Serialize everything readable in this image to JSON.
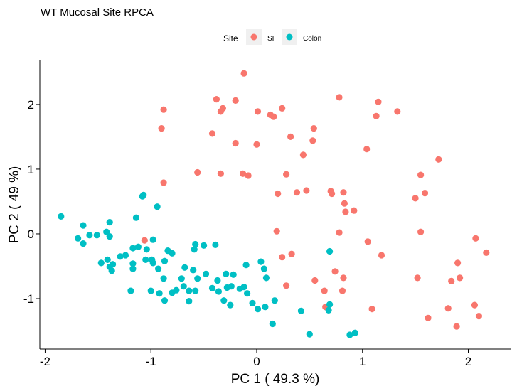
{
  "chart_data": {
    "type": "scatter",
    "title": "WT Mucosal Site RPCA",
    "xlabel": "PC 1 ( 49.3 %)",
    "ylabel": "PC 2 ( 49 %)",
    "xlim": [
      -2.05,
      2.4
    ],
    "ylim": [
      -1.78,
      2.68
    ],
    "x_ticks": [
      -2,
      -1,
      0,
      1,
      2
    ],
    "y_ticks": [
      -1,
      0,
      1,
      2
    ],
    "x_tick_labels": [
      "-2",
      "-1",
      "0",
      "1",
      "2"
    ],
    "y_tick_labels": [
      "-1",
      "0",
      "1",
      "2"
    ],
    "grid": false,
    "legend": {
      "title": "Site",
      "position": "top"
    },
    "series": [
      {
        "name": "SI",
        "color": "#F8766D",
        "points": [
          [
            -0.12,
            2.48
          ],
          [
            -0.38,
            2.08
          ],
          [
            -0.2,
            2.06
          ],
          [
            -0.32,
            1.94
          ],
          [
            -0.34,
            1.89
          ],
          [
            -0.88,
            1.92
          ],
          [
            -0.9,
            1.63
          ],
          [
            -0.42,
            1.55
          ],
          [
            0.01,
            1.89
          ],
          [
            0.13,
            1.84
          ],
          [
            0.16,
            1.81
          ],
          [
            0.24,
            1.94
          ],
          [
            0.78,
            2.11
          ],
          [
            1.15,
            2.04
          ],
          [
            1.13,
            1.82
          ],
          [
            1.33,
            1.89
          ],
          [
            0.54,
            1.63
          ],
          [
            0.32,
            1.5
          ],
          [
            0.53,
            1.44
          ],
          [
            -0.2,
            1.4
          ],
          [
            0.0,
            1.38
          ],
          [
            0.44,
            1.22
          ],
          [
            1.04,
            1.31
          ],
          [
            1.72,
            1.15
          ],
          [
            -0.56,
            0.95
          ],
          [
            -0.34,
            0.93
          ],
          [
            -0.13,
            0.93
          ],
          [
            -0.08,
            0.9
          ],
          [
            0.28,
            0.92
          ],
          [
            1.55,
            0.91
          ],
          [
            -0.88,
            0.79
          ],
          [
            0.47,
            0.67
          ],
          [
            0.38,
            0.64
          ],
          [
            0.7,
            0.66
          ],
          [
            0.71,
            0.62
          ],
          [
            0.82,
            0.64
          ],
          [
            0.2,
            0.62
          ],
          [
            1.59,
            0.63
          ],
          [
            1.5,
            0.55
          ],
          [
            0.83,
            0.47
          ],
          [
            0.84,
            0.34
          ],
          [
            0.92,
            0.36
          ],
          [
            0.19,
            0.04
          ],
          [
            0.78,
            0.02
          ],
          [
            -1.06,
            -0.1
          ],
          [
            1.55,
            0.03
          ],
          [
            1.05,
            -0.12
          ],
          [
            2.07,
            -0.07
          ],
          [
            0.33,
            -0.31
          ],
          [
            0.24,
            -0.36
          ],
          [
            1.18,
            -0.33
          ],
          [
            2.17,
            -0.29
          ],
          [
            1.9,
            -0.45
          ],
          [
            0.74,
            -0.58
          ],
          [
            0.28,
            -0.8
          ],
          [
            0.55,
            -0.72
          ],
          [
            0.82,
            -0.68
          ],
          [
            1.52,
            -0.68
          ],
          [
            1.92,
            -0.68
          ],
          [
            1.84,
            -0.73
          ],
          [
            0.64,
            -0.88
          ],
          [
            0.81,
            -0.88
          ],
          [
            0.65,
            -1.13
          ],
          [
            1.09,
            -1.16
          ],
          [
            1.81,
            -1.15
          ],
          [
            2.06,
            -1.1
          ],
          [
            2.1,
            -1.27
          ],
          [
            1.62,
            -1.3
          ],
          [
            1.89,
            -1.43
          ]
        ]
      },
      {
        "name": "Colon",
        "color": "#00BFC4",
        "points": [
          [
            -1.85,
            0.27
          ],
          [
            -1.64,
            0.13
          ],
          [
            -1.08,
            0.58
          ],
          [
            -1.07,
            0.6
          ],
          [
            -0.94,
            0.42
          ],
          [
            -1.14,
            0.25
          ],
          [
            -1.39,
            0.18
          ],
          [
            -1.42,
            0.03
          ],
          [
            -1.58,
            -0.02
          ],
          [
            -1.51,
            -0.02
          ],
          [
            -1.69,
            -0.07
          ],
          [
            -1.64,
            -0.15
          ],
          [
            -1.39,
            -0.04
          ],
          [
            -0.98,
            -0.09
          ],
          [
            -1.04,
            -0.24
          ],
          [
            -0.84,
            -0.26
          ],
          [
            -0.8,
            -0.3
          ],
          [
            -0.58,
            -0.16
          ],
          [
            -0.5,
            -0.18
          ],
          [
            -0.39,
            -0.17
          ],
          [
            -0.59,
            -0.24
          ],
          [
            -1.12,
            -0.2
          ],
          [
            -1.17,
            -0.22
          ],
          [
            -1.24,
            -0.33
          ],
          [
            -1.29,
            -0.35
          ],
          [
            -1.41,
            -0.4
          ],
          [
            -1.47,
            -0.45
          ],
          [
            -1.36,
            -0.47
          ],
          [
            -1.39,
            -0.51
          ],
          [
            -1.17,
            -0.46
          ],
          [
            -1.05,
            -0.4
          ],
          [
            -0.99,
            -0.4
          ],
          [
            -0.98,
            -0.45
          ],
          [
            -0.87,
            -0.42
          ],
          [
            -1.17,
            -0.54
          ],
          [
            -1.37,
            -0.57
          ],
          [
            -0.93,
            -0.54
          ],
          [
            -0.88,
            -0.69
          ],
          [
            -0.68,
            -0.52
          ],
          [
            -0.71,
            -0.69
          ],
          [
            -0.6,
            -0.56
          ],
          [
            -0.56,
            -0.69
          ],
          [
            -0.48,
            -0.62
          ],
          [
            -0.37,
            -0.72
          ],
          [
            -0.29,
            -0.62
          ],
          [
            -0.22,
            -0.63
          ],
          [
            -0.1,
            -0.48
          ],
          [
            0.04,
            -0.43
          ],
          [
            0.07,
            -0.54
          ],
          [
            0.09,
            -0.68
          ],
          [
            -0.36,
            -0.89
          ],
          [
            -0.28,
            -0.83
          ],
          [
            -0.24,
            -0.81
          ],
          [
            -0.16,
            -0.85
          ],
          [
            -0.12,
            -0.82
          ],
          [
            -0.09,
            -0.92
          ],
          [
            -0.69,
            -0.81
          ],
          [
            -0.76,
            -0.87
          ],
          [
            -0.8,
            -0.91
          ],
          [
            -0.92,
            -0.92
          ],
          [
            -1.0,
            -0.88
          ],
          [
            -0.64,
            -0.88
          ],
          [
            -0.58,
            -0.88
          ],
          [
            -0.42,
            -0.84
          ],
          [
            -0.87,
            -1.03
          ],
          [
            -0.31,
            -1.03
          ],
          [
            -0.04,
            -1.07
          ],
          [
            -0.25,
            -1.1
          ],
          [
            -1.19,
            -0.88
          ],
          [
            -0.64,
            -1.04
          ],
          [
            0.08,
            -1.13
          ],
          [
            0.01,
            -1.16
          ],
          [
            0.17,
            -1.03
          ],
          [
            0.69,
            -1.09
          ],
          [
            0.42,
            -1.19
          ],
          [
            0.68,
            -1.18
          ],
          [
            0.15,
            -1.39
          ],
          [
            0.5,
            -1.55
          ],
          [
            0.88,
            -1.56
          ],
          [
            0.93,
            -1.53
          ],
          [
            0.69,
            -0.27
          ]
        ]
      }
    ]
  }
}
